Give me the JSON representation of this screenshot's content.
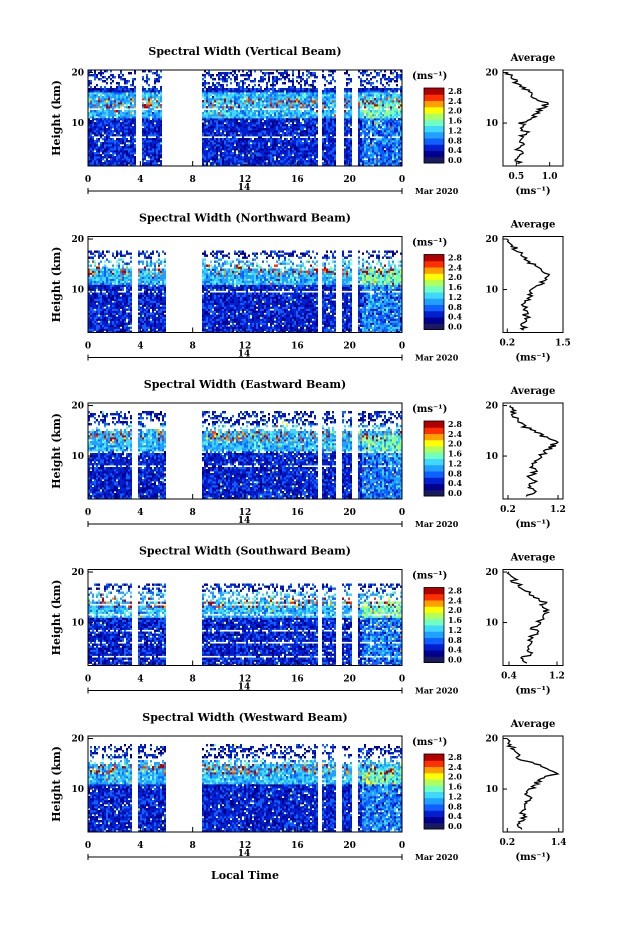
{
  "figure": {
    "date_label": "Mar 2020",
    "day_label": "14",
    "xlabel": "Local Time",
    "ylabel": "Height (km)",
    "unit_label": "(ms⁻¹)",
    "avg_title": "Average",
    "avg_xlabel": "(ms⁻¹)"
  },
  "colorbar": {
    "tick_labels": [
      "0.0",
      "0.4",
      "0.8",
      "1.2",
      "1.6",
      "2.0",
      "2.4",
      "2.8"
    ],
    "colors": [
      "#1a1a5e",
      "#00008f",
      "#0020d0",
      "#1060ff",
      "#20a0ff",
      "#40d8ff",
      "#70ffc0",
      "#b0ff60",
      "#ffff00",
      "#ffa000",
      "#ff3000",
      "#b00000"
    ]
  },
  "chart_data": [
    {
      "type": "heatmap",
      "title": "Spectral Width (Vertical Beam)",
      "x_ticks": [
        "0",
        "4",
        "8",
        "12",
        "16",
        "20",
        "0"
      ],
      "y_ticks": [
        "10",
        "20"
      ],
      "xlim": [
        0,
        24
      ],
      "ylim": [
        1.5,
        20.5
      ],
      "gaps": [
        [
          3.6,
          4.1
        ],
        [
          5.7,
          8.7
        ],
        [
          17.6,
          17.9
        ],
        [
          19.0,
          19.5
        ],
        [
          20.2,
          20.6
        ]
      ],
      "echo_top": 20,
      "profile": {
        "xlim": [
          0.3,
          1.2
        ],
        "x_ticks": [
          "0.5",
          "1.0"
        ],
        "x_tick_values": [
          0.5,
          1.0
        ],
        "heights": [
          2,
          3,
          4,
          5,
          6,
          7,
          8,
          9,
          10,
          11,
          12,
          13,
          14,
          15,
          16,
          17,
          18,
          19,
          20
        ],
        "values": [
          0.55,
          0.5,
          0.62,
          0.48,
          0.6,
          0.55,
          0.65,
          0.6,
          0.58,
          0.72,
          0.8,
          0.9,
          0.95,
          0.75,
          0.7,
          0.6,
          0.5,
          0.42,
          0.38
        ]
      }
    },
    {
      "type": "heatmap",
      "title": "Spectral Width (Northward Beam)",
      "x_ticks": [
        "0",
        "4",
        "8",
        "12",
        "16",
        "20",
        "0"
      ],
      "y_ticks": [
        "10",
        "20"
      ],
      "xlim": [
        0,
        24
      ],
      "ylim": [
        1.5,
        20.5
      ],
      "gaps": [
        [
          3.4,
          3.8
        ],
        [
          5.9,
          8.7
        ],
        [
          17.6,
          17.9
        ],
        [
          19.0,
          19.4
        ],
        [
          20.2,
          20.6
        ]
      ],
      "echo_top": 17,
      "profile": {
        "xlim": [
          0.1,
          1.5
        ],
        "x_ticks": [
          "0.2",
          "1.5"
        ],
        "x_tick_values": [
          0.2,
          1.5
        ],
        "heights": [
          2,
          3,
          4,
          5,
          6,
          7,
          8,
          9,
          10,
          11,
          12,
          13,
          14,
          15,
          16,
          17,
          18,
          19,
          20
        ],
        "values": [
          0.6,
          0.55,
          0.7,
          0.6,
          0.65,
          0.6,
          0.7,
          0.75,
          0.8,
          0.95,
          1.1,
          1.2,
          1.0,
          0.8,
          0.6,
          0.5,
          0.4,
          0.3,
          0.2
        ]
      }
    },
    {
      "type": "heatmap",
      "title": "Spectral Width (Eastward Beam)",
      "x_ticks": [
        "0",
        "4",
        "8",
        "12",
        "16",
        "20",
        "0"
      ],
      "y_ticks": [
        "10",
        "20"
      ],
      "xlim": [
        0,
        24
      ],
      "ylim": [
        1.5,
        20.5
      ],
      "gaps": [
        [
          3.4,
          3.8
        ],
        [
          5.9,
          8.7
        ],
        [
          17.6,
          17.9
        ],
        [
          19.0,
          19.4
        ],
        [
          20.2,
          20.6
        ]
      ],
      "echo_top": 18,
      "profile": {
        "xlim": [
          0.1,
          1.3
        ],
        "x_ticks": [
          "0.2",
          "1.2"
        ],
        "x_tick_values": [
          0.2,
          1.2
        ],
        "heights": [
          2,
          3,
          4,
          5,
          6,
          7,
          8,
          9,
          10,
          11,
          12,
          13,
          14,
          15,
          16,
          17,
          18,
          19,
          20
        ],
        "values": [
          0.6,
          0.7,
          0.6,
          0.7,
          0.65,
          0.75,
          0.7,
          0.8,
          0.85,
          0.95,
          1.1,
          1.15,
          0.9,
          0.7,
          0.5,
          0.4,
          0.35,
          0.3,
          0.25
        ]
      }
    },
    {
      "type": "heatmap",
      "title": "Spectral Width (Southward Beam)",
      "x_ticks": [
        "0",
        "4",
        "8",
        "12",
        "16",
        "20",
        "0"
      ],
      "y_ticks": [
        "10",
        "20"
      ],
      "xlim": [
        0,
        24
      ],
      "ylim": [
        1.5,
        20.5
      ],
      "gaps": [
        [
          3.4,
          3.8
        ],
        [
          5.9,
          8.7
        ],
        [
          17.6,
          17.9
        ],
        [
          19.0,
          19.4
        ],
        [
          20.2,
          20.6
        ]
      ],
      "echo_top": 17,
      "profile": {
        "xlim": [
          0.3,
          1.3
        ],
        "x_ticks": [
          "0.4",
          "1.2"
        ],
        "x_tick_values": [
          0.4,
          1.2
        ],
        "heights": [
          2,
          3,
          4,
          5,
          6,
          7,
          8,
          9,
          10,
          11,
          12,
          13,
          14,
          15,
          16,
          17,
          18,
          19,
          20
        ],
        "values": [
          0.7,
          0.65,
          0.75,
          0.7,
          0.8,
          0.75,
          0.85,
          0.8,
          0.9,
          1.0,
          1.05,
          0.95,
          1.0,
          0.85,
          0.7,
          0.6,
          0.5,
          0.45,
          0.4
        ]
      }
    },
    {
      "type": "heatmap",
      "title": "Spectral Width (Westward Beam)",
      "x_ticks": [
        "0",
        "4",
        "8",
        "12",
        "16",
        "20",
        "0"
      ],
      "y_ticks": [
        "10",
        "20"
      ],
      "xlim": [
        0,
        24
      ],
      "ylim": [
        1.5,
        20.5
      ],
      "gaps": [
        [
          3.4,
          3.8
        ],
        [
          5.9,
          8.7
        ],
        [
          17.6,
          17.9
        ],
        [
          19.0,
          19.4
        ],
        [
          20.2,
          20.6
        ]
      ],
      "echo_top": 18,
      "profile": {
        "xlim": [
          0.1,
          1.5
        ],
        "x_ticks": [
          "0.2",
          "1.4"
        ],
        "x_tick_values": [
          0.2,
          1.4
        ],
        "heights": [
          2,
          3,
          4,
          5,
          6,
          7,
          8,
          9,
          10,
          11,
          12,
          13,
          14,
          15,
          16,
          17,
          18,
          19,
          20
        ],
        "values": [
          0.55,
          0.5,
          0.6,
          0.55,
          0.65,
          0.6,
          0.7,
          0.65,
          0.75,
          0.85,
          1.0,
          1.3,
          1.2,
          0.8,
          0.5,
          0.4,
          0.3,
          0.25,
          0.2
        ]
      }
    }
  ]
}
